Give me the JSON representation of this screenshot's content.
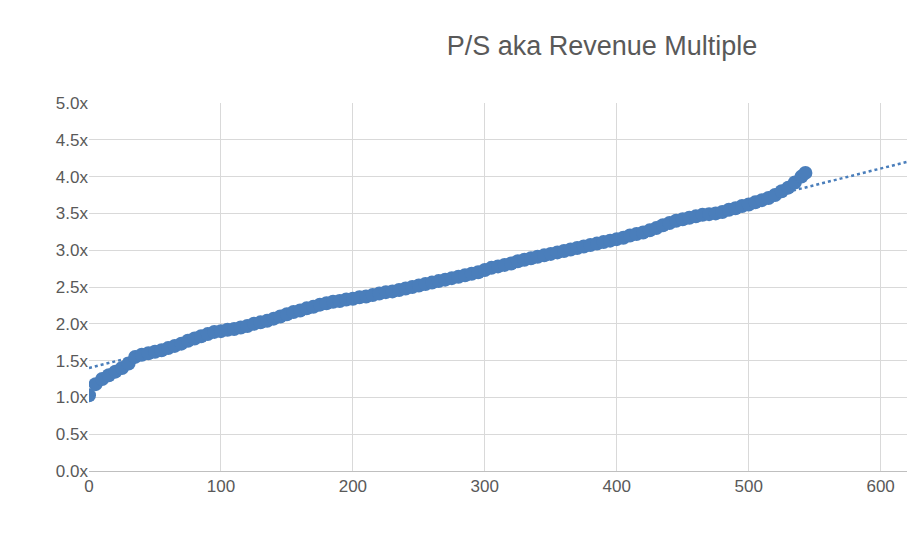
{
  "chart_data": {
    "type": "scatter",
    "title": "P/S aka Revenue Multiple",
    "series": [
      {
        "type": "scatter",
        "color": "#4a7ebb",
        "marker": "circle",
        "x": [
          0,
          5,
          10,
          15,
          20,
          25,
          30,
          35,
          40,
          45,
          50,
          55,
          60,
          65,
          70,
          75,
          80,
          85,
          90,
          95,
          100,
          105,
          110,
          115,
          120,
          125,
          130,
          135,
          140,
          145,
          150,
          155,
          160,
          165,
          170,
          175,
          180,
          185,
          190,
          195,
          200,
          205,
          210,
          215,
          220,
          225,
          230,
          235,
          240,
          245,
          250,
          255,
          260,
          265,
          270,
          275,
          280,
          285,
          290,
          295,
          300,
          305,
          310,
          315,
          320,
          325,
          330,
          335,
          340,
          345,
          350,
          355,
          360,
          365,
          370,
          375,
          380,
          385,
          390,
          395,
          400,
          405,
          410,
          415,
          420,
          425,
          430,
          435,
          440,
          445,
          450,
          455,
          460,
          465,
          470,
          475,
          480,
          485,
          490,
          495,
          500,
          505,
          510,
          515,
          520,
          525,
          530,
          535,
          540,
          543
        ],
        "values": [
          1.03,
          1.18,
          1.25,
          1.3,
          1.35,
          1.4,
          1.46,
          1.55,
          1.58,
          1.6,
          1.62,
          1.64,
          1.67,
          1.7,
          1.73,
          1.77,
          1.8,
          1.83,
          1.86,
          1.89,
          1.9,
          1.92,
          1.93,
          1.95,
          1.97,
          2.0,
          2.02,
          2.04,
          2.07,
          2.1,
          2.13,
          2.16,
          2.18,
          2.21,
          2.23,
          2.26,
          2.28,
          2.3,
          2.31,
          2.33,
          2.34,
          2.36,
          2.37,
          2.39,
          2.41,
          2.43,
          2.44,
          2.46,
          2.48,
          2.5,
          2.52,
          2.54,
          2.56,
          2.58,
          2.6,
          2.62,
          2.64,
          2.66,
          2.68,
          2.7,
          2.73,
          2.76,
          2.78,
          2.8,
          2.82,
          2.85,
          2.87,
          2.89,
          2.91,
          2.93,
          2.95,
          2.97,
          2.99,
          3.01,
          3.03,
          3.05,
          3.07,
          3.09,
          3.11,
          3.13,
          3.15,
          3.17,
          3.2,
          3.22,
          3.24,
          3.27,
          3.3,
          3.34,
          3.37,
          3.4,
          3.42,
          3.44,
          3.46,
          3.48,
          3.49,
          3.5,
          3.52,
          3.55,
          3.57,
          3.6,
          3.62,
          3.65,
          3.68,
          3.71,
          3.75,
          3.8,
          3.85,
          3.92,
          4.0,
          4.05
        ]
      },
      {
        "type": "line",
        "color": "#4a7ebb",
        "line_style": "dotted",
        "x": [
          0,
          620
        ],
        "values": [
          1.4,
          4.2
        ]
      }
    ],
    "xlim": [
      0,
      620
    ],
    "xticks": [
      0,
      100,
      200,
      300,
      400,
      500,
      600
    ],
    "ylim": [
      0,
      5
    ],
    "yticks": [
      {
        "value": 0,
        "label": "0.0x"
      },
      {
        "value": 0.5,
        "label": "0.5x"
      },
      {
        "value": 1,
        "label": "1.0x"
      },
      {
        "value": 1.5,
        "label": "1.5x"
      },
      {
        "value": 2,
        "label": "2.0x"
      },
      {
        "value": 2.5,
        "label": "2.5x"
      },
      {
        "value": 3,
        "label": "3.0x"
      },
      {
        "value": 3.5,
        "label": "3.5x"
      },
      {
        "value": 4,
        "label": "4.0x"
      },
      {
        "value": 4.5,
        "label": "4.5x"
      },
      {
        "value": 5,
        "label": "5.0x"
      }
    ],
    "grid": true
  }
}
